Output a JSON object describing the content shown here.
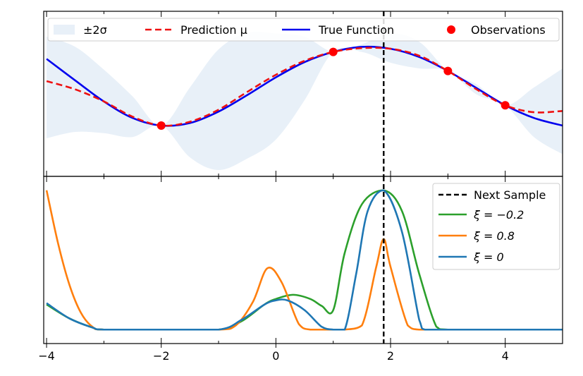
{
  "chart_data": [
    {
      "type": "line",
      "panel": "top",
      "xlim": [
        -4.05,
        5.0
      ],
      "ylim": [
        -1.3,
        1.3
      ],
      "legend": {
        "placement": "top",
        "entries": [
          "±2σ",
          "Prediction μ",
          "True Function",
          "Observations"
        ]
      },
      "series": [
        {
          "name": "True Function",
          "color": "#0000ee",
          "x": [
            -4.0,
            -3.5,
            -3.0,
            -2.5,
            -2.0,
            -1.5,
            -1.0,
            -0.5,
            0.0,
            0.5,
            1.0,
            1.5,
            2.0,
            2.5,
            3.0,
            3.5,
            4.0,
            4.5,
            5.0
          ],
          "y": [
            0.55,
            0.21,
            -0.12,
            -0.38,
            -0.5,
            -0.46,
            -0.28,
            -0.02,
            0.26,
            0.5,
            0.66,
            0.74,
            0.71,
            0.58,
            0.36,
            0.09,
            -0.18,
            -0.38,
            -0.5
          ]
        },
        {
          "name": "Prediction μ",
          "color": "#ee1111",
          "x": [
            -4.0,
            -3.5,
            -3.0,
            -2.5,
            -2.0,
            -1.5,
            -1.0,
            -0.5,
            0.0,
            0.5,
            1.0,
            1.5,
            2.0,
            2.5,
            3.0,
            3.5,
            4.0,
            4.5,
            5.0
          ],
          "y": [
            0.2,
            0.07,
            -0.12,
            -0.36,
            -0.5,
            -0.44,
            -0.25,
            0.03,
            0.3,
            0.52,
            0.66,
            0.72,
            0.71,
            0.6,
            0.36,
            0.07,
            -0.18,
            -0.29,
            -0.27
          ]
        },
        {
          "name": "±2σ",
          "color": "#e8f0f8",
          "x": [
            -4.0,
            -3.5,
            -3.0,
            -2.5,
            -2.0,
            -1.5,
            -1.0,
            -0.5,
            0.0,
            0.5,
            1.0,
            1.5,
            2.0,
            2.5,
            3.0,
            3.5,
            4.0,
            4.5,
            5.0
          ],
          "upper": [
            0.9,
            0.74,
            0.38,
            -0.04,
            -0.5,
            0.1,
            0.7,
            0.96,
            0.95,
            0.9,
            0.66,
            0.78,
            0.95,
            0.82,
            0.36,
            0.15,
            -0.18,
            0.1,
            0.4
          ],
          "lower": [
            -0.7,
            -0.6,
            -0.62,
            -0.68,
            -0.5,
            -1.0,
            -1.2,
            -1.02,
            -0.72,
            -0.1,
            0.66,
            0.66,
            0.49,
            0.4,
            0.36,
            -0.01,
            -0.18,
            -0.68,
            -0.95
          ]
        }
      ],
      "observations": {
        "name": "Observations",
        "color": "#ff0000",
        "x": [
          -2.0,
          1.0,
          3.0,
          4.0
        ],
        "y": [
          -0.5,
          0.66,
          0.36,
          -0.18
        ]
      },
      "next_sample_x": 1.88
    },
    {
      "type": "line",
      "panel": "bottom",
      "xlim": [
        -4.05,
        5.0
      ],
      "ylim": [
        -0.1,
        1.1
      ],
      "xticks": [
        -4,
        -2,
        0,
        2,
        4
      ],
      "tick_labels": [
        "−4",
        "−2",
        "0",
        "2",
        "4"
      ],
      "legend": {
        "placement": "top-right",
        "entries": [
          "Next Sample",
          "ξ = −0.2",
          "ξ = 0.8",
          "ξ = 0"
        ]
      },
      "next_sample_x": 1.88,
      "series": [
        {
          "name": "ξ = −0.2",
          "color": "#2ca02c",
          "x": [
            -4.0,
            -3.6,
            -3.2,
            -3.0,
            -2.0,
            -1.0,
            -0.6,
            -0.2,
            0.0,
            0.3,
            0.6,
            0.8,
            1.0,
            1.2,
            1.5,
            1.88,
            2.2,
            2.5,
            2.8,
            3.0,
            4.0,
            5.0
          ],
          "y": [
            0.18,
            0.08,
            0.015,
            0.0,
            0.0,
            0.0,
            0.06,
            0.18,
            0.22,
            0.25,
            0.22,
            0.17,
            0.14,
            0.55,
            0.9,
            1.0,
            0.85,
            0.4,
            0.02,
            0.0,
            0.0,
            0.0
          ]
        },
        {
          "name": "ξ = 0.8",
          "color": "#ff7f0e",
          "x": [
            -4.0,
            -3.8,
            -3.6,
            -3.4,
            -3.2,
            -3.0,
            -2.0,
            -1.0,
            -0.7,
            -0.4,
            -0.15,
            0.1,
            0.4,
            0.6,
            1.0,
            1.2,
            1.5,
            1.75,
            1.88,
            2.0,
            2.3,
            2.5,
            3.0,
            4.0,
            5.0
          ],
          "y": [
            1.0,
            0.62,
            0.32,
            0.12,
            0.02,
            0.0,
            0.0,
            0.0,
            0.03,
            0.2,
            0.44,
            0.34,
            0.04,
            0.0,
            0.0,
            0.0,
            0.03,
            0.45,
            0.65,
            0.45,
            0.03,
            0.0,
            0.0,
            0.0,
            0.0
          ]
        },
        {
          "name": "ξ = 0",
          "color": "#1f77b4",
          "x": [
            -4.0,
            -3.6,
            -3.2,
            -3.0,
            -2.0,
            -1.0,
            -0.6,
            -0.2,
            0.0,
            0.2,
            0.5,
            0.8,
            1.0,
            1.2,
            1.4,
            1.6,
            1.88,
            2.2,
            2.5,
            2.6,
            3.0,
            4.0,
            5.0
          ],
          "y": [
            0.19,
            0.08,
            0.015,
            0.0,
            0.0,
            0.0,
            0.07,
            0.18,
            0.21,
            0.21,
            0.14,
            0.02,
            0.0,
            0.0,
            0.4,
            0.85,
            1.0,
            0.7,
            0.07,
            0.0,
            0.0,
            0.0,
            0.0
          ]
        }
      ]
    }
  ]
}
